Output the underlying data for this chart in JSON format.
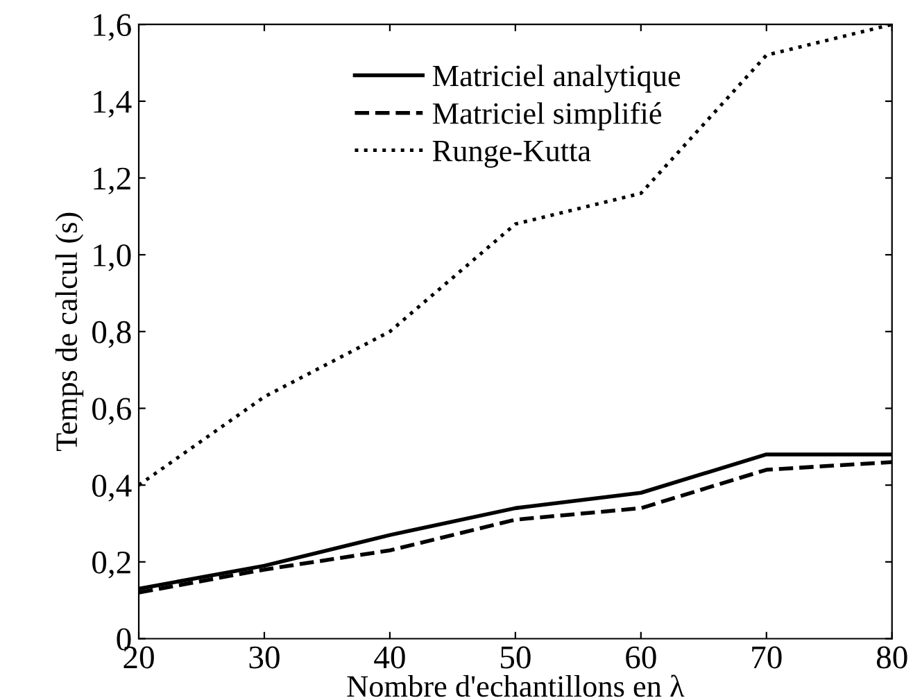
{
  "chart_data": {
    "type": "line",
    "xlabel": "Nombre d'echantillons en λ",
    "ylabel": "Temps de calcul (s)",
    "x": [
      20,
      30,
      40,
      50,
      60,
      70,
      80
    ],
    "series": [
      {
        "name": "Matriciel analytique",
        "color": "#000000",
        "line_style": "solid",
        "values": [
          0.13,
          0.19,
          0.27,
          0.34,
          0.38,
          0.48,
          0.48
        ]
      },
      {
        "name": "Matriciel simplifié",
        "color": "#000000",
        "line_style": "dashed",
        "values": [
          0.12,
          0.18,
          0.23,
          0.31,
          0.34,
          0.44,
          0.46
        ]
      },
      {
        "name": "Runge-Kutta",
        "color": "#000000",
        "line_style": "dotted",
        "values": [
          0.4,
          0.63,
          0.8,
          1.08,
          1.16,
          1.52,
          1.6
        ]
      }
    ],
    "xlim": [
      20,
      80
    ],
    "ylim": [
      0,
      1.6
    ],
    "xticks": [
      20,
      30,
      40,
      50,
      60,
      70,
      80
    ],
    "yticks": [
      0,
      {
        "value": 0.2,
        "label": "0,2"
      },
      {
        "value": 0.4,
        "label": "0,4"
      },
      {
        "value": 0.6,
        "label": "0,6"
      },
      {
        "value": 0.8,
        "label": "0,8"
      },
      {
        "value": 1.0,
        "label": "1,0"
      },
      {
        "value": 1.2,
        "label": "1,2"
      },
      {
        "value": 1.4,
        "label": "1,4"
      },
      {
        "value": 1.6,
        "label": "1,6"
      }
    ],
    "grid": false,
    "legend": "top"
  }
}
